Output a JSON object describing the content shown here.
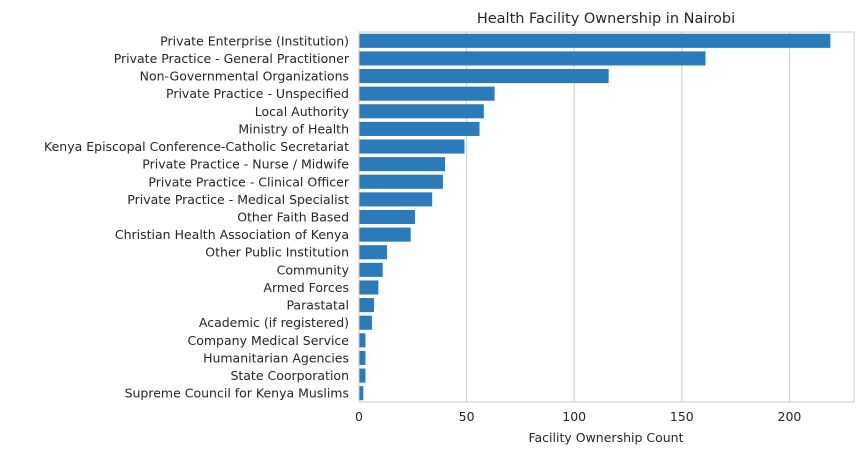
{
  "chart_data": {
    "type": "bar",
    "orientation": "horizontal",
    "title": "Health Facility Ownership in Nairobi",
    "xlabel": "Facility Ownership Count",
    "ylabel": "",
    "xlim": [
      0,
      230
    ],
    "xticks": [
      0,
      50,
      100,
      150,
      200
    ],
    "grid": true,
    "bar_color": "#2b7bba",
    "categories": [
      "Private Enterprise (Institution)",
      "Private Practice - General Practitioner",
      "Non-Governmental Organizations",
      "Private Practice - Unspecified",
      "Local Authority",
      "Ministry of Health",
      "Kenya Episcopal Conference-Catholic Secretariat",
      "Private Practice - Nurse / Midwife",
      "Private Practice - Clinical Officer",
      "Private Practice - Medical Specialist",
      "Other Faith Based",
      "Christian Health Association of Kenya",
      "Other Public Institution",
      "Community",
      "Armed Forces",
      "Parastatal",
      "Academic (if registered)",
      "Company Medical Service",
      "Humanitarian Agencies",
      "State Coorporation",
      "Supreme Council for Kenya Muslims"
    ],
    "values": [
      219,
      161,
      116,
      63,
      58,
      56,
      49,
      40,
      39,
      34,
      26,
      24,
      13,
      11,
      9,
      7,
      6,
      3,
      3,
      3,
      2
    ]
  }
}
